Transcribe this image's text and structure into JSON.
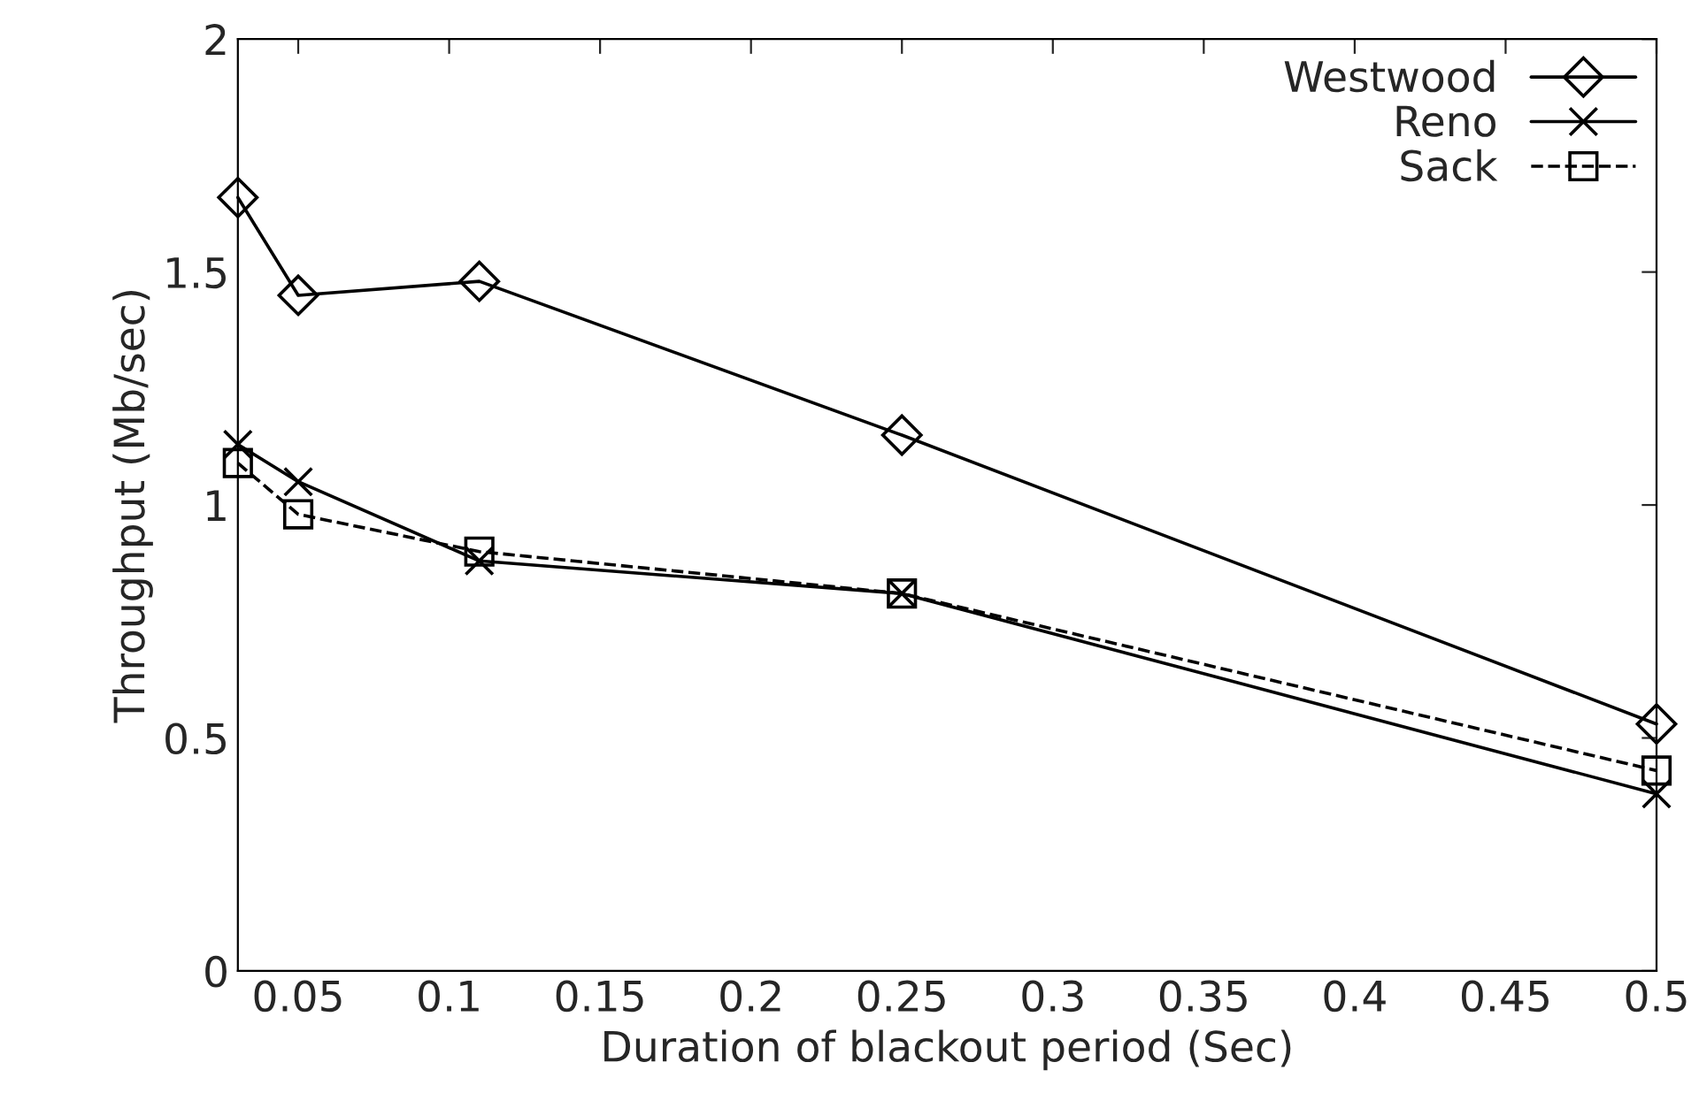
{
  "chart_data": {
    "type": "line",
    "xlabel": "Duration of blackout period (Sec)",
    "ylabel": "Throughput (Mb/sec)",
    "xlim": [
      0.03,
      0.5
    ],
    "xticks": [
      0.05,
      0.1,
      0.15,
      0.2,
      0.25,
      0.3,
      0.35,
      0.4,
      0.45,
      0.5
    ],
    "ylim": [
      0,
      2
    ],
    "yticks": [
      0,
      0.5,
      1,
      1.5,
      2
    ],
    "grid": false,
    "legend": "top right",
    "series": [
      {
        "name": "Westwood",
        "color": "#000000",
        "marker": "diamond",
        "line_style": "solid",
        "x": [
          0.03,
          0.05,
          0.11,
          0.25,
          0.5
        ],
        "values": [
          1.66,
          1.45,
          1.48,
          1.15,
          0.53
        ]
      },
      {
        "name": "Reno",
        "color": "#000000",
        "marker": "cross",
        "line_style": "solid",
        "x": [
          0.03,
          0.05,
          0.11,
          0.25,
          0.5
        ],
        "values": [
          1.13,
          1.05,
          0.88,
          0.81,
          0.38
        ]
      },
      {
        "name": "Sack",
        "color": "#000000",
        "marker": "square",
        "line_style": "dashed",
        "x": [
          0.03,
          0.05,
          0.11,
          0.25,
          0.5
        ],
        "values": [
          1.09,
          0.98,
          0.9,
          0.81,
          0.43
        ]
      }
    ]
  }
}
